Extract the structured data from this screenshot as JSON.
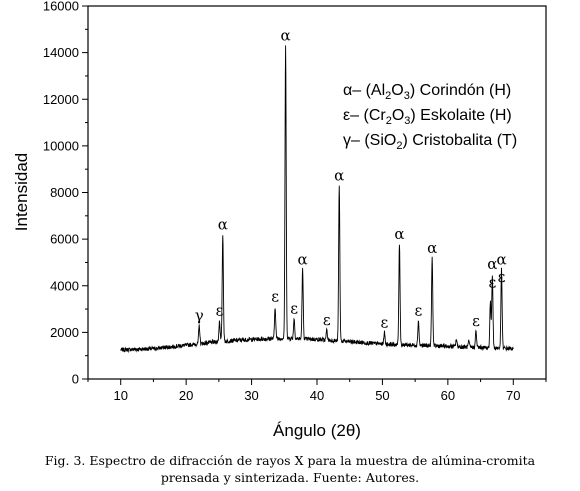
{
  "chart_data": {
    "type": "line",
    "xlabel": "Ángulo (2θ)",
    "ylabel": "Intensidad",
    "xlim": [
      5,
      75
    ],
    "ylim": [
      0,
      16000
    ],
    "xticks": [
      10,
      20,
      30,
      40,
      50,
      60,
      70
    ],
    "yticks": [
      0,
      2000,
      4000,
      6000,
      8000,
      10000,
      12000,
      14000,
      16000
    ],
    "grid": false,
    "baseline": [
      [
        10,
        1250
      ],
      [
        15,
        1300
      ],
      [
        20,
        1450
      ],
      [
        25,
        1600
      ],
      [
        30,
        1700
      ],
      [
        35,
        1750
      ],
      [
        40,
        1700
      ],
      [
        45,
        1600
      ],
      [
        50,
        1500
      ],
      [
        55,
        1450
      ],
      [
        60,
        1400
      ],
      [
        65,
        1350
      ],
      [
        70,
        1300
      ]
    ],
    "peaks": [
      {
        "x": 22.0,
        "y": 2300,
        "label": "γ"
      },
      {
        "x": 25.1,
        "y": 2500,
        "label": "ε"
      },
      {
        "x": 25.6,
        "y": 6200,
        "label": "α"
      },
      {
        "x": 33.6,
        "y": 3100,
        "label": "ε"
      },
      {
        "x": 35.2,
        "y": 14300,
        "label": "α"
      },
      {
        "x": 36.5,
        "y": 2600,
        "label": "ε"
      },
      {
        "x": 37.8,
        "y": 4700,
        "label": "α"
      },
      {
        "x": 41.5,
        "y": 2100,
        "label": "ε"
      },
      {
        "x": 43.4,
        "y": 8300,
        "label": "α"
      },
      {
        "x": 50.3,
        "y": 2000,
        "label": "ε"
      },
      {
        "x": 52.6,
        "y": 5800,
        "label": "α"
      },
      {
        "x": 55.5,
        "y": 2500,
        "label": "ε"
      },
      {
        "x": 57.6,
        "y": 5200,
        "label": "α"
      },
      {
        "x": 61.3,
        "y": 1700,
        "label": ""
      },
      {
        "x": 63.2,
        "y": 1600,
        "label": ""
      },
      {
        "x": 64.3,
        "y": 2050,
        "label": "ε"
      },
      {
        "x": 66.5,
        "y": 3300,
        "label": ""
      },
      {
        "x": 66.8,
        "y": 4500,
        "label": "α"
      },
      {
        "x": 68.2,
        "y": 4700,
        "label": "α"
      }
    ],
    "extra_labels": [
      {
        "x": 66.8,
        "y": 3700,
        "label": "ε"
      },
      {
        "x": 68.2,
        "y": 3950,
        "label": "ε"
      }
    ],
    "legend": {
      "placement": "top-right",
      "entries": [
        {
          "symbol": "α",
          "dash": "–",
          "formula": [
            [
              "",
              "(Al"
            ],
            [
              "sub",
              "2"
            ],
            [
              "",
              "O"
            ],
            [
              "sub",
              "3"
            ],
            [
              "",
              ")"
            ]
          ],
          "name": "Corindón (H)"
        },
        {
          "symbol": "ε",
          "dash": "–",
          "formula": [
            [
              "",
              "(Cr"
            ],
            [
              "sub",
              "2"
            ],
            [
              "",
              "O"
            ],
            [
              "sub",
              "3"
            ],
            [
              "",
              ")"
            ]
          ],
          "name": "Eskolaite (H)"
        },
        {
          "symbol": "γ",
          "dash": "–",
          "formula": [
            [
              "",
              "(SiO"
            ],
            [
              "sub",
              "2"
            ],
            [
              "",
              ")"
            ]
          ],
          "name": "Cristobalita (T)"
        }
      ]
    },
    "line_color": "#000000"
  },
  "caption": {
    "line1": "Fig. 3. Espectro de difracción de rayos X para la muestra de alúmina-cromita",
    "line2": "prensada y sinterizada. Fuente: Autores."
  }
}
